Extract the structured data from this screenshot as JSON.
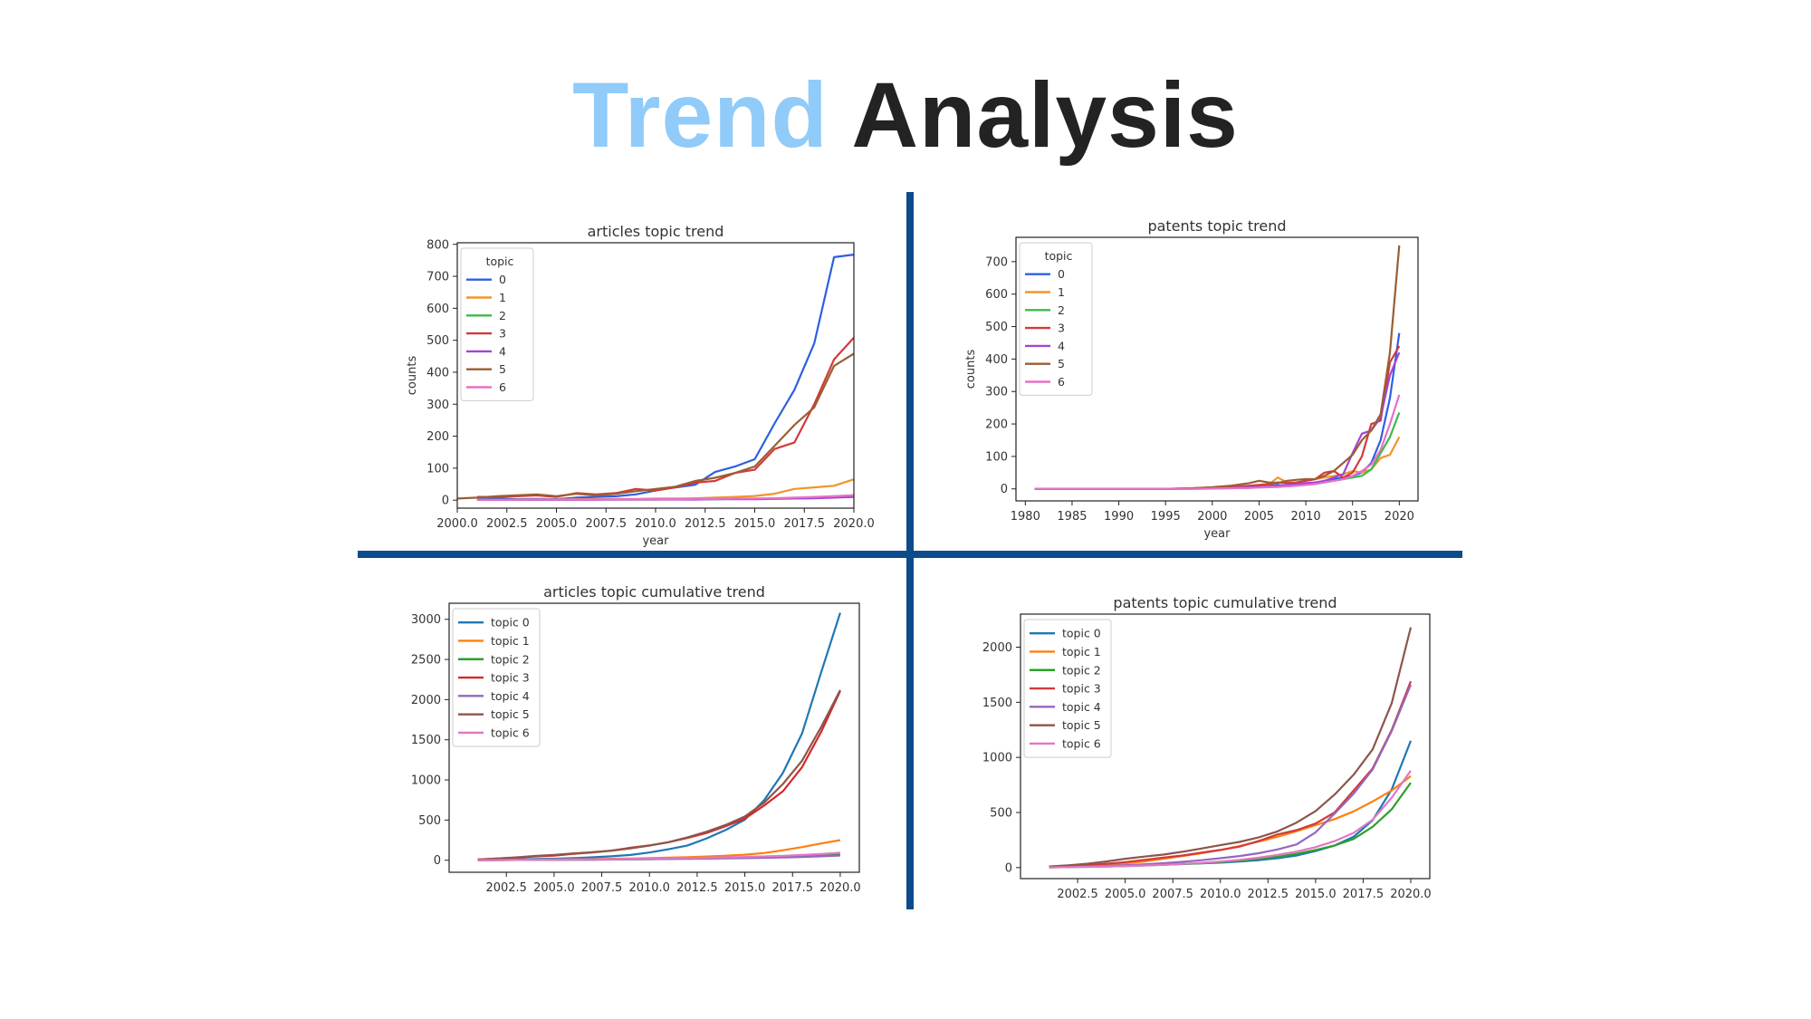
{
  "slide": {
    "title_part1": "Trend",
    "title_part2": "Analysis",
    "colors": {
      "title_accent": "#90cbf9",
      "title_main": "#232323",
      "divider": "#0d4c8c"
    }
  },
  "chart_data": [
    {
      "type": "line",
      "title": "articles topic trend",
      "xlabel": "year",
      "ylabel": "counts",
      "xlim": [
        2000,
        2020
      ],
      "ylim": [
        -25,
        805
      ],
      "xticks": [
        2000,
        2002.5,
        2005,
        2007.5,
        2010,
        2012.5,
        2015,
        2017.5,
        2020
      ],
      "xtick_labels": [
        "2000.0",
        "2002.5",
        "2005.0",
        "2007.5",
        "2010.0",
        "2012.5",
        "2015.0",
        "2017.5",
        "2020.0"
      ],
      "yticks": [
        0,
        100,
        200,
        300,
        400,
        500,
        600,
        700,
        800
      ],
      "ytick_labels": [
        "0",
        "100",
        "200",
        "300",
        "400",
        "500",
        "600",
        "700",
        "800"
      ],
      "legend_title": "topic",
      "legend_position": "top-left",
      "grid": false,
      "x": [
        2000,
        2001,
        2002,
        2003,
        2004,
        2005,
        2006,
        2007,
        2008,
        2009,
        2010,
        2011,
        2012,
        2013,
        2014,
        2015,
        2016,
        2017,
        2018,
        2019,
        2020
      ],
      "series": [
        {
          "name": "0",
          "color": "#2e5fe0",
          "values": [
            null,
            3,
            5,
            3,
            4,
            3,
            8,
            10,
            12,
            18,
            30,
            40,
            48,
            88,
            105,
            128,
            240,
            345,
            490,
            760,
            768
          ]
        },
        {
          "name": "1",
          "color": "#f0952b",
          "values": [
            null,
            1,
            1,
            2,
            2,
            2,
            3,
            3,
            4,
            4,
            5,
            5,
            6,
            8,
            10,
            13,
            20,
            35,
            40,
            45,
            65
          ]
        },
        {
          "name": "2",
          "color": "#3cba4c",
          "values": [
            null,
            1,
            1,
            1,
            1,
            1,
            1,
            2,
            2,
            2,
            2,
            3,
            3,
            3,
            4,
            4,
            5,
            7,
            9,
            12,
            15
          ]
        },
        {
          "name": "3",
          "color": "#d23a3a",
          "values": [
            null,
            10,
            10,
            12,
            15,
            10,
            22,
            18,
            22,
            35,
            30,
            40,
            55,
            60,
            85,
            95,
            160,
            180,
            300,
            440,
            508
          ]
        },
        {
          "name": "4",
          "color": "#a045d8",
          "values": [
            null,
            1,
            1,
            1,
            1,
            1,
            1,
            1,
            2,
            2,
            2,
            2,
            2,
            3,
            3,
            3,
            4,
            5,
            6,
            8,
            10
          ]
        },
        {
          "name": "5",
          "color": "#9a5e32",
          "values": [
            5,
            8,
            12,
            15,
            18,
            12,
            20,
            15,
            20,
            28,
            35,
            42,
            60,
            70,
            85,
            105,
            170,
            235,
            290,
            420,
            458
          ]
        },
        {
          "name": "6",
          "color": "#ea6fc7",
          "values": [
            null,
            1,
            1,
            1,
            2,
            2,
            2,
            2,
            3,
            3,
            3,
            3,
            4,
            4,
            5,
            5,
            6,
            8,
            10,
            12,
            15
          ]
        }
      ]
    },
    {
      "type": "line",
      "title": "patents topic trend",
      "xlabel": "year",
      "ylabel": "counts",
      "xlim": [
        1979,
        2022
      ],
      "ylim": [
        -37,
        775
      ],
      "xticks": [
        1980,
        1985,
        1990,
        1995,
        2000,
        2005,
        2010,
        2015,
        2020
      ],
      "xtick_labels": [
        "1980",
        "1985",
        "1990",
        "1995",
        "2000",
        "2005",
        "2010",
        "2015",
        "2020"
      ],
      "yticks": [
        0,
        100,
        200,
        300,
        400,
        500,
        600,
        700
      ],
      "ytick_labels": [
        "0",
        "100",
        "200",
        "300",
        "400",
        "500",
        "600",
        "700"
      ],
      "legend_title": "topic",
      "legend_position": "top-left",
      "grid": false,
      "x": [
        1981,
        1985,
        1990,
        1995,
        1998,
        2000,
        2002,
        2004,
        2005,
        2006,
        2007,
        2008,
        2009,
        2010,
        2011,
        2012,
        2013,
        2014,
        2015,
        2016,
        2017,
        2018,
        2019,
        2020
      ],
      "series": [
        {
          "name": "0",
          "color": "#2e5fe0",
          "values": [
            0,
            0,
            0,
            0,
            1,
            2,
            4,
            5,
            8,
            10,
            12,
            8,
            10,
            15,
            15,
            25,
            30,
            35,
            40,
            50,
            80,
            150,
            280,
            480
          ]
        },
        {
          "name": "1",
          "color": "#f0952b",
          "values": [
            0,
            0,
            0,
            0,
            1,
            2,
            3,
            5,
            8,
            12,
            35,
            20,
            18,
            25,
            30,
            35,
            40,
            45,
            55,
            50,
            60,
            95,
            105,
            160
          ]
        },
        {
          "name": "2",
          "color": "#3cba4c",
          "values": [
            0,
            0,
            0,
            0,
            0,
            1,
            2,
            3,
            5,
            6,
            8,
            10,
            12,
            14,
            16,
            20,
            25,
            30,
            35,
            40,
            60,
            110,
            160,
            235
          ]
        },
        {
          "name": "3",
          "color": "#d23a3a",
          "values": [
            0,
            0,
            0,
            0,
            2,
            4,
            6,
            10,
            12,
            15,
            20,
            18,
            20,
            25,
            30,
            50,
            55,
            35,
            50,
            100,
            200,
            210,
            390,
            440
          ]
        },
        {
          "name": "4",
          "color": "#a045d8",
          "values": [
            0,
            0,
            0,
            0,
            1,
            2,
            3,
            5,
            6,
            8,
            10,
            12,
            15,
            18,
            20,
            25,
            35,
            45,
            110,
            170,
            180,
            220,
            350,
            420
          ]
        },
        {
          "name": "5",
          "color": "#9a5e32",
          "values": [
            0,
            0,
            0,
            0,
            2,
            5,
            10,
            18,
            25,
            20,
            18,
            25,
            28,
            30,
            30,
            40,
            55,
            80,
            105,
            150,
            180,
            230,
            420,
            750
          ]
        },
        {
          "name": "6",
          "color": "#ea6fc7",
          "values": [
            0,
            0,
            0,
            0,
            0,
            1,
            2,
            3,
            4,
            5,
            6,
            8,
            10,
            12,
            15,
            20,
            25,
            30,
            40,
            55,
            75,
            120,
            200,
            290
          ]
        }
      ]
    },
    {
      "type": "line",
      "title": "articles topic cumulative trend",
      "xlabel": "",
      "ylabel": "",
      "xlim": [
        1999.5,
        2021
      ],
      "ylim": [
        -150,
        3200
      ],
      "xticks": [
        2002.5,
        2005,
        2007.5,
        2010,
        2012.5,
        2015,
        2017.5,
        2020
      ],
      "xtick_labels": [
        "2002.5",
        "2005.0",
        "2007.5",
        "2010.0",
        "2012.5",
        "2015.0",
        "2017.5",
        "2020.0"
      ],
      "yticks": [
        0,
        500,
        1000,
        1500,
        2000,
        2500,
        3000
      ],
      "ytick_labels": [
        "0",
        "500",
        "1000",
        "1500",
        "2000",
        "2500",
        "3000"
      ],
      "legend_position": "top-left",
      "grid": false,
      "x": [
        2001,
        2002,
        2003,
        2004,
        2005,
        2006,
        2007,
        2008,
        2009,
        2010,
        2011,
        2012,
        2013,
        2014,
        2015,
        2016,
        2017,
        2018,
        2019,
        2020
      ],
      "series": [
        {
          "name": "topic 0",
          "color": "#1f77b4",
          "values": [
            3,
            8,
            11,
            15,
            18,
            26,
            36,
            48,
            66,
            96,
            136,
            184,
            272,
            377,
            505,
            745,
            1090,
            1580,
            2340,
            3080
          ]
        },
        {
          "name": "topic 1",
          "color": "#ff7f0e",
          "values": [
            1,
            2,
            4,
            6,
            8,
            11,
            14,
            18,
            22,
            27,
            32,
            38,
            46,
            56,
            69,
            89,
            124,
            164,
            209,
            250
          ]
        },
        {
          "name": "topic 2",
          "color": "#2ca02c",
          "values": [
            1,
            2,
            3,
            4,
            5,
            6,
            8,
            10,
            12,
            14,
            17,
            20,
            23,
            27,
            31,
            36,
            43,
            52,
            64,
            79
          ]
        },
        {
          "name": "topic 3",
          "color": "#d62728",
          "values": [
            10,
            20,
            32,
            47,
            57,
            79,
            97,
            119,
            154,
            184,
            224,
            279,
            339,
            424,
            519,
            679,
            859,
            1159,
            1599,
            2107
          ]
        },
        {
          "name": "topic 4",
          "color": "#9467bd",
          "values": [
            1,
            2,
            3,
            4,
            5,
            6,
            7,
            9,
            11,
            13,
            15,
            17,
            20,
            23,
            26,
            30,
            35,
            41,
            49,
            59
          ]
        },
        {
          "name": "topic 5",
          "color": "#8c564b",
          "values": [
            8,
            20,
            35,
            53,
            65,
            85,
            100,
            120,
            148,
            183,
            225,
            285,
            355,
            440,
            545,
            715,
            950,
            1240,
            1660,
            2118
          ]
        },
        {
          "name": "topic 6",
          "color": "#e377c2",
          "values": [
            1,
            2,
            3,
            5,
            7,
            9,
            11,
            14,
            17,
            20,
            23,
            27,
            31,
            36,
            41,
            47,
            55,
            65,
            77,
            92
          ]
        }
      ]
    },
    {
      "type": "line",
      "title": "patents topic cumulative trend",
      "xlabel": "",
      "ylabel": "",
      "xlim": [
        1999.5,
        2021
      ],
      "ylim": [
        -100,
        2300
      ],
      "xticks": [
        2002.5,
        2005,
        2007.5,
        2010,
        2012.5,
        2015,
        2017.5,
        2020
      ],
      "xtick_labels": [
        "2002.5",
        "2005.0",
        "2007.5",
        "2010.0",
        "2012.5",
        "2015.0",
        "2017.5",
        "2020.0"
      ],
      "yticks": [
        0,
        500,
        1000,
        1500,
        2000
      ],
      "ytick_labels": [
        "0",
        "500",
        "1000",
        "1500",
        "2000"
      ],
      "legend_position": "top-left",
      "grid": false,
      "x": [
        2001,
        2002,
        2003,
        2004,
        2005,
        2006,
        2007,
        2008,
        2009,
        2010,
        2011,
        2012,
        2013,
        2014,
        2015,
        2016,
        2017,
        2018,
        2019,
        2020
      ],
      "series": [
        {
          "name": "topic 0",
          "color": "#1f77b4",
          "values": [
            3,
            6,
            10,
            14,
            18,
            22,
            27,
            32,
            38,
            45,
            55,
            68,
            85,
            110,
            150,
            200,
            280,
            430,
            710,
            1150
          ]
        },
        {
          "name": "topic 1",
          "color": "#ff7f0e",
          "values": [
            5,
            10,
            18,
            28,
            40,
            55,
            80,
            105,
            130,
            160,
            195,
            235,
            280,
            330,
            385,
            440,
            510,
            600,
            700,
            830
          ]
        },
        {
          "name": "topic 2",
          "color": "#2ca02c",
          "values": [
            2,
            4,
            7,
            10,
            14,
            19,
            25,
            32,
            40,
            50,
            62,
            78,
            98,
            125,
            160,
            200,
            260,
            370,
            530,
            770
          ]
        },
        {
          "name": "topic 3",
          "color": "#d23a3a",
          "values": [
            6,
            12,
            22,
            35,
            50,
            70,
            90,
            110,
            135,
            160,
            190,
            240,
            300,
            340,
            400,
            500,
            700,
            900,
            1250,
            1690
          ]
        },
        {
          "name": "topic 4",
          "color": "#9467bd",
          "values": [
            3,
            6,
            10,
            16,
            22,
            30,
            40,
            52,
            67,
            85,
            105,
            130,
            165,
            210,
            320,
            490,
            670,
            890,
            1240,
            1660
          ]
        },
        {
          "name": "topic 5",
          "color": "#8c564b",
          "values": [
            10,
            20,
            35,
            55,
            80,
            100,
            118,
            143,
            173,
            203,
            233,
            273,
            328,
            408,
            513,
            663,
            843,
            1073,
            1493,
            2180
          ]
        },
        {
          "name": "topic 6",
          "color": "#e377c2",
          "values": [
            2,
            4,
            7,
            10,
            14,
            19,
            25,
            33,
            43,
            55,
            70,
            90,
            115,
            145,
            185,
            240,
            315,
            435,
            635,
            880
          ]
        }
      ]
    }
  ]
}
